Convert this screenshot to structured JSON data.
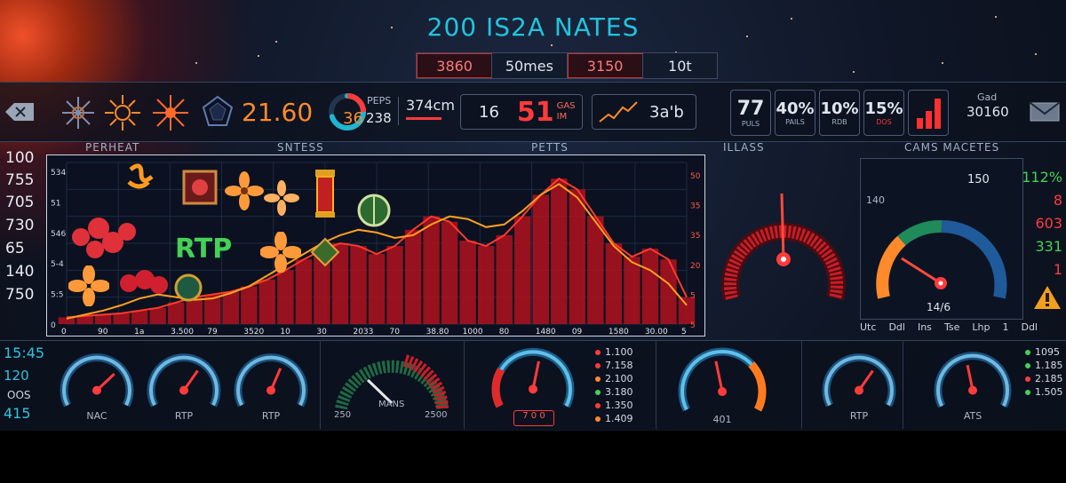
{
  "title": "200 IS2A NATES",
  "tabs": [
    {
      "label": "3860",
      "state": "hot"
    },
    {
      "label": "50mes",
      "state": "normal"
    },
    {
      "label": "3150",
      "state": "hot"
    },
    {
      "label": "10t",
      "state": "normal"
    }
  ],
  "topbar": {
    "back_icon": "back-arrow-icon",
    "symbols": [
      "snowflake-icon",
      "sun-icon",
      "star-burst-icon",
      "gem-icon"
    ],
    "balance": "21.60",
    "donut": {
      "small_label": "PEPS",
      "big_value": "36",
      "value2": "238",
      "fraction": 0.7
    },
    "box1_text": "374cm",
    "box2_value": "16",
    "box2_big": "51",
    "box2_small1": "GAS",
    "box2_small2": "IM",
    "box3_text": "3a'b",
    "stat_boxes": [
      {
        "value": "77",
        "caption": "PULS",
        "accent": "#dfe6ee"
      },
      {
        "value": "40%",
        "caption": "PAILS",
        "accent": "#dfe6ee"
      },
      {
        "value": "10%",
        "caption": "RDB",
        "accent": "#dfe6ee"
      },
      {
        "value": "15%",
        "caption": "DOS",
        "accent": "#ff3030"
      },
      {
        "value": "",
        "caption": "",
        "accent": "#ff3030"
      }
    ],
    "right_small": "Gad",
    "right_value": "30160",
    "mail_icon": "mail-icon"
  },
  "section_headers": [
    "PERHEAT",
    "SNTESS",
    "PETTS",
    "ILLASS",
    "CAMS MACETES"
  ],
  "left_numbers": [
    "100",
    "755",
    "705",
    "730",
    "65",
    "140",
    "750"
  ],
  "right_numbers": [
    {
      "text": "112%",
      "color": "#43d156"
    },
    {
      "text": "8",
      "color": "#ff3b3b"
    },
    {
      "text": "603",
      "color": "#ff3b3b"
    },
    {
      "text": "331",
      "color": "#43d156"
    },
    {
      "text": "1",
      "color": "#ff3b3b"
    }
  ],
  "warning_icon": "warning-icon",
  "chart_data": {
    "type": "area",
    "y_left_ticks": [
      "534",
      "51",
      "546",
      "5-4",
      "5:5",
      "0"
    ],
    "y_right_ticks": [
      "50",
      "35",
      "35",
      "20",
      "5",
      "5"
    ],
    "x_ticks": [
      "0",
      "90",
      "1a",
      "3.500",
      "79",
      "3520",
      "10",
      "30",
      "2033",
      "70",
      "38.80",
      "1000",
      "80",
      "1480",
      "09",
      "1580",
      "30.00",
      "5"
    ],
    "series_fill": [
      5,
      6,
      7,
      8,
      10,
      12,
      16,
      20,
      22,
      24,
      28,
      33,
      40,
      48,
      55,
      60,
      58,
      52,
      58,
      70,
      80,
      76,
      62,
      58,
      66,
      80,
      96,
      108,
      100,
      80,
      60,
      50,
      56,
      48,
      20
    ],
    "series_line": [
      4,
      7,
      10,
      14,
      19,
      22,
      20,
      18,
      19,
      23,
      28,
      36,
      44,
      52,
      60,
      66,
      70,
      68,
      64,
      66,
      74,
      80,
      78,
      72,
      74,
      84,
      96,
      104,
      94,
      76,
      58,
      46,
      40,
      30,
      14
    ],
    "ylim": [
      0,
      120
    ]
  },
  "rtp_label": "RTP",
  "center_gauge": {
    "fraction": 0.5
  },
  "right_gauge": {
    "top_label": "150",
    "left_label": "140",
    "bottom_label": "14/6",
    "fraction": 0.78,
    "scale_labels": [
      "Utc",
      "Ddl",
      "Ins",
      "Tse",
      "Lhp",
      "1",
      "Ddl"
    ]
  },
  "bottom": {
    "clock_time": "15:45",
    "left_values": [
      "120",
      "OOS",
      "415"
    ],
    "gauges": [
      {
        "label": "NAC",
        "fraction": 0.7
      },
      {
        "label": "RTP",
        "fraction": 0.65
      },
      {
        "label": "RTP",
        "fraction": 0.6
      }
    ],
    "wide_gauge": {
      "label": "MANS",
      "left": "250",
      "right": "2500",
      "fraction": 0.75
    },
    "center_gauge": {
      "caption": "7 0 0",
      "fraction": 0.55
    },
    "center_list": [
      {
        "text": "1.100",
        "color": "#ff3b3b"
      },
      {
        "text": "7.158",
        "color": "#ff3b3b"
      },
      {
        "text": "2.100",
        "color": "#ff8a2b"
      },
      {
        "text": "3.180",
        "color": "#43d156"
      },
      {
        "text": "1.350",
        "color": "#ff3b3b"
      },
      {
        "text": "1.409",
        "color": "#ff8a2b"
      }
    ],
    "orange_gauge": {
      "caption": "401",
      "fraction": 0.45
    },
    "gauge_rtp": {
      "label": "RTP",
      "fraction": 0.65
    },
    "gauge_ats": {
      "label": "ATS",
      "fraction": 0.45
    },
    "right_list": [
      {
        "text": "1095",
        "color": "#43d156"
      },
      {
        "text": "1.185",
        "color": "#43d156"
      },
      {
        "text": "2.185",
        "color": "#ff3b3b"
      },
      {
        "text": "1.505",
        "color": "#43d156"
      }
    ]
  }
}
